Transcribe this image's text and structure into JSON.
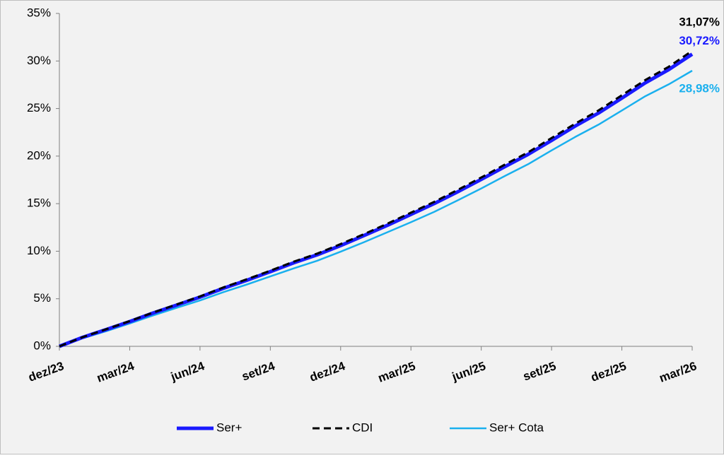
{
  "chart_data": {
    "type": "line",
    "categories": [
      "dez/23",
      null,
      null,
      "mar/24",
      null,
      null,
      "jun/24",
      null,
      null,
      "set/24",
      null,
      null,
      "dez/24",
      null,
      null,
      "mar/25",
      null,
      null,
      "jun/25",
      null,
      null,
      "set/25",
      null,
      null,
      "dez/25",
      null,
      null,
      "mar/26"
    ],
    "series": [
      {
        "name": "Ser+",
        "color": "#1a1aff",
        "line_width": 5,
        "line_style": "solid",
        "values": [
          0,
          0.95,
          1.77,
          2.6,
          3.5,
          4.33,
          5.17,
          6.1,
          6.95,
          7.85,
          8.78,
          9.62,
          10.6,
          11.65,
          12.73,
          13.87,
          15.02,
          16.25,
          17.55,
          18.88,
          20.18,
          21.65,
          23.15,
          24.52,
          26.1,
          27.7,
          29.1,
          30.72
        ],
        "value_labels": [
          null,
          null,
          null,
          null,
          null,
          null,
          null,
          null,
          null,
          null,
          null,
          null,
          null,
          null,
          null,
          null,
          null,
          null,
          null,
          null,
          null,
          null,
          null,
          null,
          null,
          null,
          null,
          "30,72%"
        ]
      },
      {
        "name": "CDI",
        "color": "#000000",
        "line_width": 3,
        "line_style": "dashed",
        "values": [
          0,
          0.97,
          1.8,
          2.65,
          3.55,
          4.4,
          5.25,
          6.2,
          7.05,
          7.95,
          8.9,
          9.75,
          10.75,
          11.8,
          12.9,
          14.05,
          15.2,
          16.45,
          17.75,
          19.1,
          20.4,
          21.9,
          23.4,
          24.8,
          26.4,
          28.0,
          29.4,
          31.07
        ],
        "value_labels": [
          null,
          null,
          null,
          null,
          null,
          null,
          null,
          null,
          null,
          null,
          null,
          null,
          null,
          null,
          null,
          null,
          null,
          null,
          null,
          null,
          null,
          null,
          null,
          null,
          null,
          null,
          null,
          "31,07%"
        ]
      },
      {
        "name": "Ser+ Cota",
        "color": "#1ab0ee",
        "line_width": 2.5,
        "line_style": "solid",
        "values": [
          0,
          0.85,
          1.6,
          2.4,
          3.25,
          4.05,
          4.82,
          5.7,
          6.5,
          7.35,
          8.2,
          9.0,
          9.95,
          10.95,
          12.0,
          13.05,
          14.15,
          15.35,
          16.6,
          17.9,
          19.15,
          20.6,
          22.0,
          23.3,
          24.8,
          26.3,
          27.55,
          28.98
        ],
        "value_labels": [
          null,
          null,
          null,
          null,
          null,
          null,
          null,
          null,
          null,
          null,
          null,
          null,
          null,
          null,
          null,
          null,
          null,
          null,
          null,
          null,
          null,
          null,
          null,
          null,
          null,
          null,
          null,
          "28,98%"
        ]
      }
    ],
    "ylim": [
      0,
      35
    ],
    "yticks": [
      {
        "value": 0,
        "label": "0%"
      },
      {
        "value": 5,
        "label": "5%"
      },
      {
        "value": 10,
        "label": "10%"
      },
      {
        "value": 15,
        "label": "15%"
      },
      {
        "value": 20,
        "label": "20%"
      },
      {
        "value": 25,
        "label": "25%"
      },
      {
        "value": 30,
        "label": "30%"
      },
      {
        "value": 35,
        "label": "35%"
      }
    ],
    "grid": false,
    "legend": "bottom"
  }
}
